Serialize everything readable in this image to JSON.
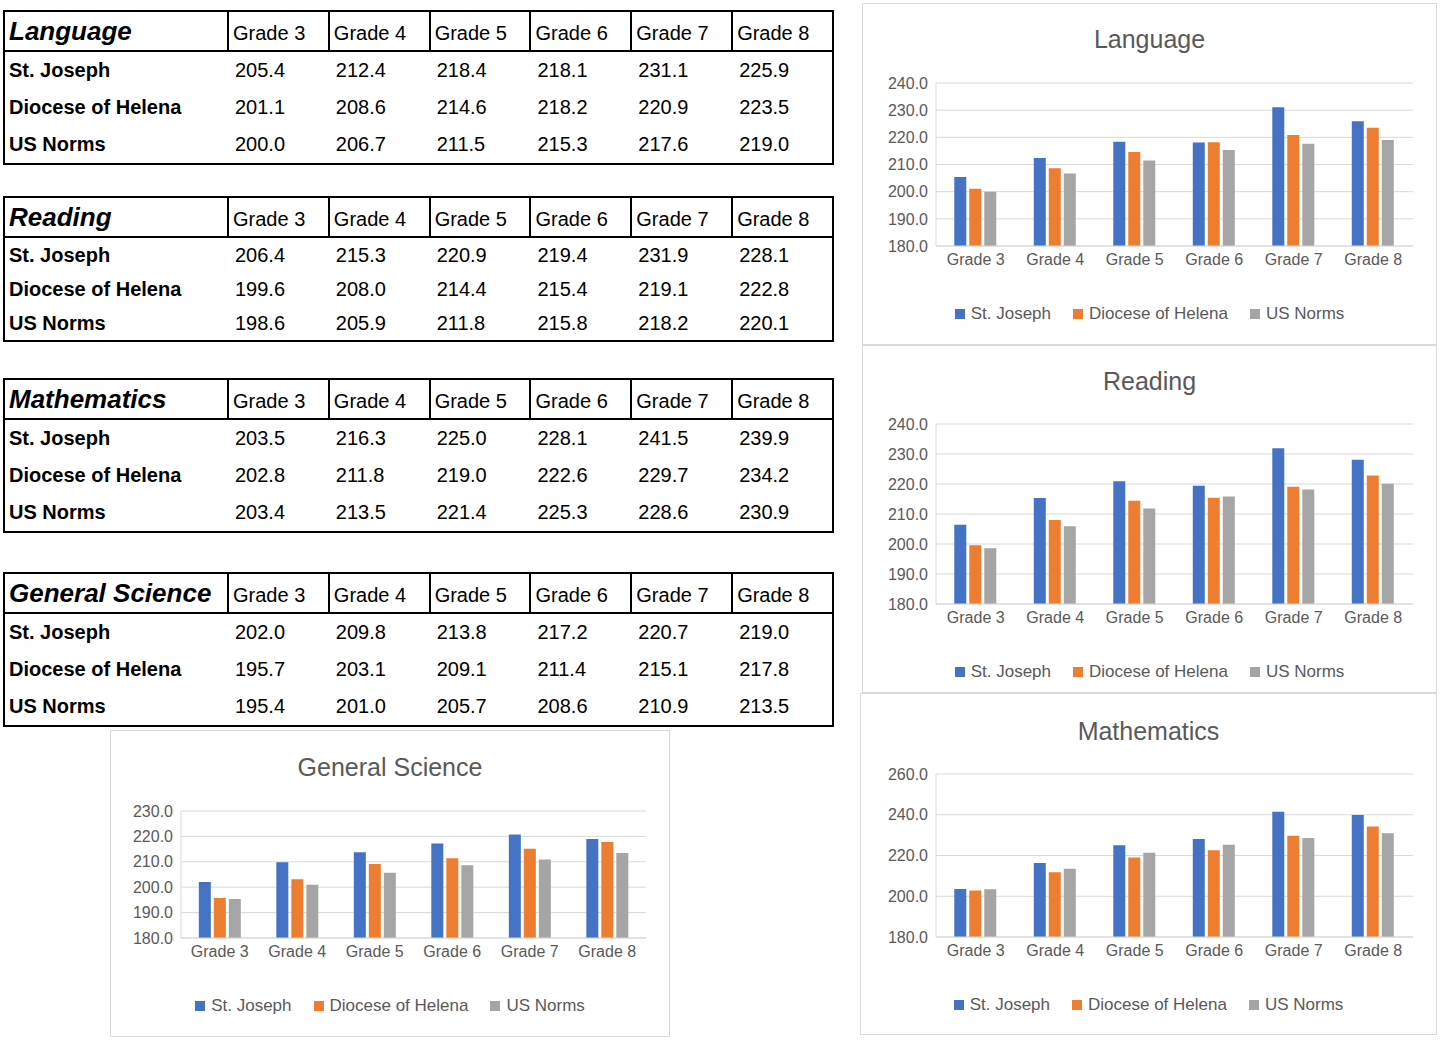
{
  "chart_data": [
    {
      "type": "bar",
      "title": "Language",
      "categories": [
        "Grade 3",
        "Grade 4",
        "Grade 5",
        "Grade 6",
        "Grade 7",
        "Grade 8"
      ],
      "series": [
        {
          "name": "St. Joseph",
          "color": "#4472c4",
          "values": [
            205.4,
            212.4,
            218.4,
            218.1,
            231.1,
            225.9
          ]
        },
        {
          "name": "Diocese of Helena",
          "color": "#ed7d31",
          "values": [
            201.1,
            208.6,
            214.6,
            218.2,
            220.9,
            223.5
          ]
        },
        {
          "name": "US Norms",
          "color": "#a5a5a5",
          "values": [
            200.0,
            206.7,
            211.5,
            215.3,
            217.6,
            219.0
          ]
        }
      ],
      "ylim": [
        180,
        240
      ],
      "yticks": [
        {
          "value": 180,
          "label": "180.0"
        },
        {
          "value": 190,
          "label": "190.0"
        },
        {
          "value": 200,
          "label": "200.0"
        },
        {
          "value": 210,
          "label": "210.0"
        },
        {
          "value": 220,
          "label": "220.0"
        },
        {
          "value": 230,
          "label": "230.0"
        },
        {
          "value": 240,
          "label": "240.0"
        }
      ],
      "grid": true,
      "legend": "bottom"
    },
    {
      "type": "bar",
      "title": "Reading",
      "categories": [
        "Grade 3",
        "Grade 4",
        "Grade 5",
        "Grade 6",
        "Grade 7",
        "Grade 8"
      ],
      "series": [
        {
          "name": "St. Joseph",
          "color": "#4472c4",
          "values": [
            206.4,
            215.3,
            220.9,
            219.4,
            231.9,
            228.1
          ]
        },
        {
          "name": "Diocese of Helena",
          "color": "#ed7d31",
          "values": [
            199.6,
            208.0,
            214.4,
            215.4,
            219.1,
            222.8
          ]
        },
        {
          "name": "US Norms",
          "color": "#a5a5a5",
          "values": [
            198.6,
            205.9,
            211.8,
            215.8,
            218.2,
            220.1
          ]
        }
      ],
      "ylim": [
        180,
        240
      ],
      "yticks": [
        {
          "value": 180,
          "label": "180.0"
        },
        {
          "value": 190,
          "label": "190.0"
        },
        {
          "value": 200,
          "label": "200.0"
        },
        {
          "value": 210,
          "label": "210.0"
        },
        {
          "value": 220,
          "label": "220.0"
        },
        {
          "value": 230,
          "label": "230.0"
        },
        {
          "value": 240,
          "label": "240.0"
        }
      ],
      "grid": true,
      "legend": "bottom"
    },
    {
      "type": "bar",
      "title": "Mathematics",
      "categories": [
        "Grade 3",
        "Grade 4",
        "Grade 5",
        "Grade 6",
        "Grade 7",
        "Grade 8"
      ],
      "series": [
        {
          "name": "St. Joseph",
          "color": "#4472c4",
          "values": [
            203.5,
            216.3,
            225.0,
            228.1,
            241.5,
            239.9
          ]
        },
        {
          "name": "Diocese of Helena",
          "color": "#ed7d31",
          "values": [
            202.8,
            211.8,
            219.0,
            222.6,
            229.7,
            234.2
          ]
        },
        {
          "name": "US Norms",
          "color": "#a5a5a5",
          "values": [
            203.4,
            213.5,
            221.4,
            225.3,
            228.6,
            230.9
          ]
        }
      ],
      "ylim": [
        180,
        260
      ],
      "yticks": [
        {
          "value": 180,
          "label": "180.0"
        },
        {
          "value": 200,
          "label": "200.0"
        },
        {
          "value": 220,
          "label": "220.0"
        },
        {
          "value": 240,
          "label": "240.0"
        },
        {
          "value": 260,
          "label": "260.0"
        }
      ],
      "grid": true,
      "legend": "bottom"
    },
    {
      "type": "bar",
      "title": "General Science",
      "categories": [
        "Grade 3",
        "Grade 4",
        "Grade 5",
        "Grade 6",
        "Grade 7",
        "Grade 8"
      ],
      "series": [
        {
          "name": "St. Joseph",
          "color": "#4472c4",
          "values": [
            202.0,
            209.8,
            213.8,
            217.2,
            220.7,
            219.0
          ]
        },
        {
          "name": "Diocese of Helena",
          "color": "#ed7d31",
          "values": [
            195.7,
            203.1,
            209.1,
            211.4,
            215.1,
            217.8
          ]
        },
        {
          "name": "US Norms",
          "color": "#a5a5a5",
          "values": [
            195.4,
            201.0,
            205.7,
            208.6,
            210.9,
            213.5
          ]
        }
      ],
      "ylim": [
        180,
        230
      ],
      "yticks": [
        {
          "value": 180,
          "label": "180.0"
        },
        {
          "value": 190,
          "label": "190.0"
        },
        {
          "value": 200,
          "label": "200.0"
        },
        {
          "value": 210,
          "label": "210.0"
        },
        {
          "value": 220,
          "label": "220.0"
        },
        {
          "value": 230,
          "label": "230.0"
        }
      ],
      "grid": true,
      "legend": "bottom"
    }
  ]
}
